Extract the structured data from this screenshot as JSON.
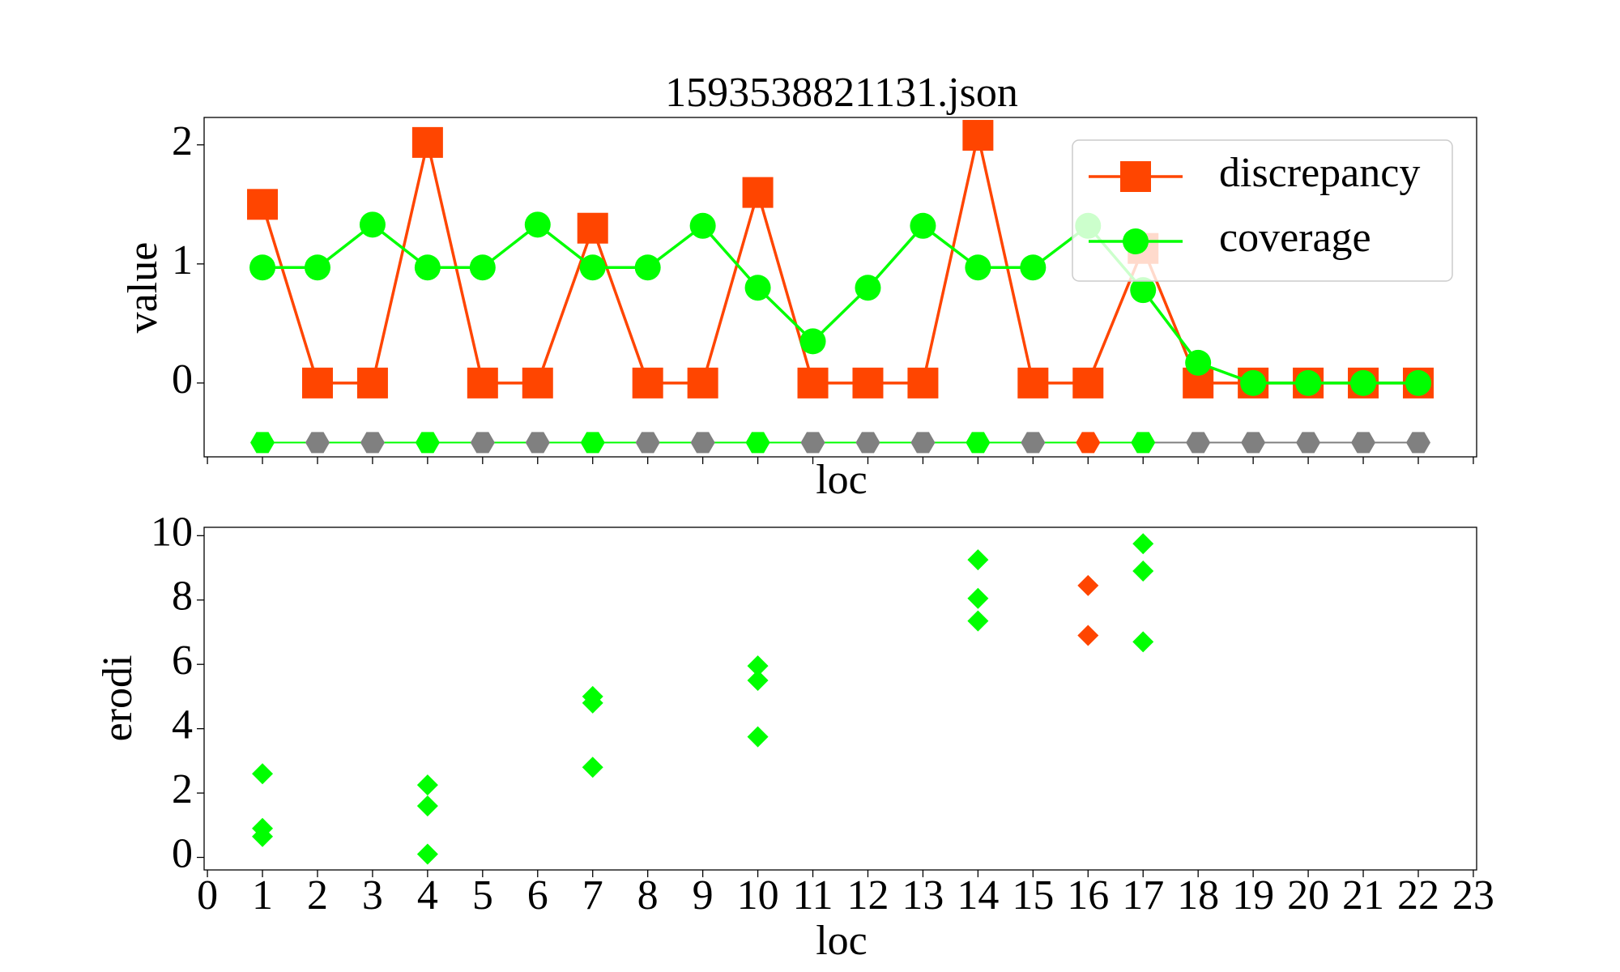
{
  "chart_data": [
    {
      "type": "line",
      "title": "1593538821131.json",
      "xlabel": "loc",
      "ylabel": "value",
      "x": [
        1,
        2,
        3,
        4,
        5,
        6,
        7,
        8,
        9,
        10,
        11,
        12,
        13,
        14,
        15,
        16,
        17,
        18,
        19,
        20,
        21,
        22
      ],
      "series": [
        {
          "name": "discrepancy",
          "color": "#ff4500",
          "marker": "square",
          "values": [
            1.5,
            0,
            0,
            2.02,
            0,
            0,
            1.3,
            0,
            0,
            1.6,
            0,
            0,
            0,
            2.08,
            0,
            0,
            1.13,
            0,
            0,
            0,
            0,
            0
          ]
        },
        {
          "name": "coverage",
          "color": "#00ff00",
          "marker": "circle",
          "values": [
            0.97,
            0.97,
            1.33,
            0.97,
            0.97,
            1.33,
            0.97,
            0.97,
            1.32,
            0.8,
            0.35,
            0.8,
            1.32,
            0.97,
            0.97,
            1.32,
            0.78,
            0.17,
            0,
            0,
            0,
            0
          ]
        }
      ],
      "markers": {
        "values": [
          -0.5,
          -0.5,
          -0.5,
          -0.5,
          -0.5,
          -0.5,
          -0.5,
          -0.5,
          -0.5,
          -0.5,
          -0.5,
          -0.5,
          -0.5,
          -0.5,
          -0.5,
          -0.5,
          -0.5,
          -0.5,
          -0.5,
          -0.5,
          -0.5,
          -0.5
        ],
        "colors": [
          "#00ff00",
          "#808080",
          "#808080",
          "#00ff00",
          "#808080",
          "#808080",
          "#00ff00",
          "#808080",
          "#808080",
          "#00ff00",
          "#808080",
          "#808080",
          "#808080",
          "#00ff00",
          "#808080",
          "#ff4500",
          "#00ff00",
          "#808080",
          "#808080",
          "#808080",
          "#808080",
          "#808080"
        ]
      },
      "xlim": [
        -0.06,
        23.06
      ],
      "ylim": [
        -0.62,
        2.23
      ],
      "xticks": [
        0,
        1,
        2,
        3,
        4,
        5,
        6,
        7,
        8,
        9,
        10,
        11,
        12,
        13,
        14,
        15,
        16,
        17,
        18,
        19,
        20,
        21,
        22,
        23
      ],
      "yticks": [
        0,
        1,
        2
      ],
      "legend": "upper right"
    },
    {
      "type": "scatter",
      "xlabel": "loc",
      "ylabel": "erodi",
      "x": [
        1,
        1,
        1,
        4,
        4,
        4,
        7,
        7,
        7,
        10,
        10,
        10,
        14,
        14,
        14,
        16,
        16,
        17,
        17,
        17
      ],
      "y": [
        2.6,
        0.9,
        0.65,
        2.25,
        1.6,
        0.1,
        5.0,
        4.8,
        2.8,
        5.95,
        5.5,
        3.75,
        9.25,
        8.05,
        7.35,
        8.45,
        6.9,
        9.75,
        8.9,
        6.7
      ],
      "colors": [
        "#00ff00",
        "#00ff00",
        "#00ff00",
        "#00ff00",
        "#00ff00",
        "#00ff00",
        "#00ff00",
        "#00ff00",
        "#00ff00",
        "#00ff00",
        "#00ff00",
        "#00ff00",
        "#00ff00",
        "#00ff00",
        "#00ff00",
        "#ff4500",
        "#ff4500",
        "#00ff00",
        "#00ff00",
        "#00ff00"
      ],
      "xlim": [
        -0.06,
        23.06
      ],
      "ylim": [
        -0.39,
        10.26
      ],
      "xticks": [
        0,
        1,
        2,
        3,
        4,
        5,
        6,
        7,
        8,
        9,
        10,
        11,
        12,
        13,
        14,
        15,
        16,
        17,
        18,
        19,
        20,
        21,
        22,
        23
      ],
      "yticks": [
        0,
        2,
        4,
        6,
        8,
        10
      ]
    }
  ]
}
